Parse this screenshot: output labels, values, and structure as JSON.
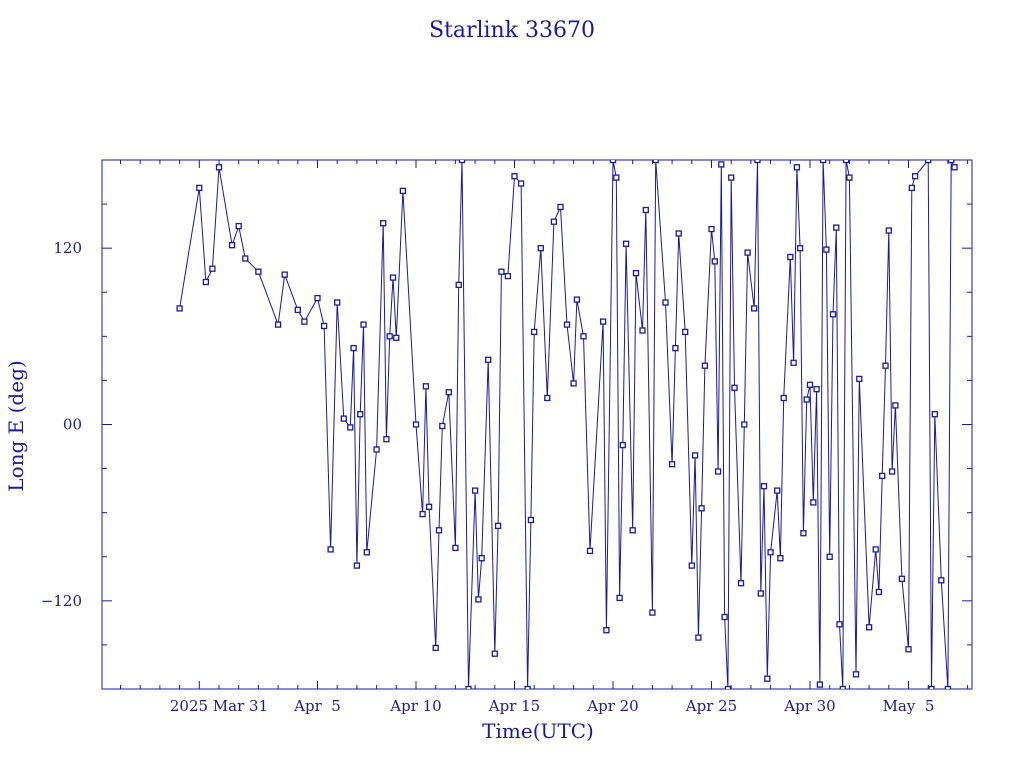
{
  "chart_data": {
    "type": "line",
    "title": "Starlink 33670",
    "xlabel": "Time(UTC)",
    "ylabel": "Long E (deg)",
    "ylim": [
      -180,
      180
    ],
    "x_tick_labels": [
      "2025 Mar 31",
      "Apr  5",
      "Apr 10",
      "Apr 15",
      "Apr 20",
      "Apr 25",
      "Apr 30",
      "May  5"
    ],
    "y_tick_labels": [
      "120",
      "00",
      "−120"
    ],
    "colors": {
      "line": "#1a1aa0",
      "frame": "#1a1aa0"
    },
    "marker": "square",
    "series": [
      {
        "points": [
          [
            "2025-03-29T00:00Z",
            79
          ],
          [
            "2025-03-30T00:00Z",
            161
          ],
          [
            "2025-03-30T08:00Z",
            97
          ],
          [
            "2025-03-30T16:00Z",
            106
          ],
          [
            "2025-03-31T00:00Z",
            175
          ],
          [
            "2025-03-31T16:00Z",
            122
          ],
          [
            "2025-04-01T00:00Z",
            135
          ],
          [
            "2025-04-01T08:00Z",
            113
          ],
          [
            "2025-04-02T00:00Z",
            104
          ],
          [
            "2025-04-03T00:00Z",
            68
          ],
          [
            "2025-04-03T08:00Z",
            102
          ],
          [
            "2025-04-04T00:00Z",
            78
          ],
          [
            "2025-04-04T08:00Z",
            70
          ],
          [
            "2025-04-05T00:00Z",
            86
          ],
          [
            "2025-04-05T08:00Z",
            67
          ],
          [
            "2025-04-05T16:00Z",
            -85
          ],
          [
            "2025-04-06T00:00Z",
            83
          ],
          [
            "2025-04-06T08:00Z",
            4
          ],
          [
            "2025-04-06T16:00Z",
            -2
          ],
          [
            "2025-04-06T20:00Z",
            52
          ],
          [
            "2025-04-07T00:00Z",
            -96
          ],
          [
            "2025-04-07T04:00Z",
            7
          ],
          [
            "2025-04-07T08:00Z",
            68
          ],
          [
            "2025-04-07T12:00Z",
            -87
          ],
          [
            "2025-04-08T00:00Z",
            -17
          ],
          [
            "2025-04-08T08:00Z",
            137
          ],
          [
            "2025-04-08T12:00Z",
            -10
          ],
          [
            "2025-04-08T16:00Z",
            60
          ],
          [
            "2025-04-08T20:00Z",
            100
          ],
          [
            "2025-04-09T00:00Z",
            59
          ],
          [
            "2025-04-09T08:00Z",
            159
          ],
          [
            "2025-04-10T00:00Z",
            0
          ],
          [
            "2025-04-10T08:00Z",
            -61
          ],
          [
            "2025-04-10T12:00Z",
            26
          ],
          [
            "2025-04-10T16:00Z",
            -56
          ],
          [
            "2025-04-11T00:00Z",
            -152
          ],
          [
            "2025-04-11T04:00Z",
            -72
          ],
          [
            "2025-04-11T08:00Z",
            -1
          ],
          [
            "2025-04-11T16:00Z",
            22
          ],
          [
            "2025-04-12T00:00Z",
            -84
          ],
          [
            "2025-04-12T04:00Z",
            95
          ],
          [
            "2025-04-12T08:00Z",
            180
          ],
          [
            "2025-04-12T16:00Z",
            -180
          ],
          [
            "2025-04-13T00:00Z",
            -45
          ],
          [
            "2025-04-13T04:00Z",
            -119
          ],
          [
            "2025-04-13T08:00Z",
            -91
          ],
          [
            "2025-04-13T16:00Z",
            44
          ],
          [
            "2025-04-14T00:00Z",
            -156
          ],
          [
            "2025-04-14T04:00Z",
            -69
          ],
          [
            "2025-04-14T08:00Z",
            104
          ],
          [
            "2025-04-14T16:00Z",
            101
          ],
          [
            "2025-04-15T00:00Z",
            169
          ],
          [
            "2025-04-15T08:00Z",
            164
          ],
          [
            "2025-04-15T16:00Z",
            -180
          ],
          [
            "2025-04-15T20:00Z",
            -65
          ],
          [
            "2025-04-16T00:00Z",
            63
          ],
          [
            "2025-04-16T08:00Z",
            120
          ],
          [
            "2025-04-16T16:00Z",
            18
          ],
          [
            "2025-04-17T00:00Z",
            138
          ],
          [
            "2025-04-17T08:00Z",
            148
          ],
          [
            "2025-04-17T16:00Z",
            68
          ],
          [
            "2025-04-18T00:00Z",
            28
          ],
          [
            "2025-04-18T04:00Z",
            85
          ],
          [
            "2025-04-18T12:00Z",
            60
          ],
          [
            "2025-04-18T20:00Z",
            -86
          ],
          [
            "2025-04-19T12:00Z",
            70
          ],
          [
            "2025-04-19T16:00Z",
            -140
          ],
          [
            "2025-04-20T00:00Z",
            180
          ],
          [
            "2025-04-20T04:00Z",
            168
          ],
          [
            "2025-04-20T08:00Z",
            -118
          ],
          [
            "2025-04-20T12:00Z",
            -14
          ],
          [
            "2025-04-20T16:00Z",
            123
          ],
          [
            "2025-04-21T00:00Z",
            -72
          ],
          [
            "2025-04-21T04:00Z",
            103
          ],
          [
            "2025-04-21T12:00Z",
            64
          ],
          [
            "2025-04-21T16:00Z",
            146
          ],
          [
            "2025-04-22T00:00Z",
            -128
          ],
          [
            "2025-04-22T04:00Z",
            180
          ],
          [
            "2025-04-22T16:00Z",
            83
          ],
          [
            "2025-04-23T00:00Z",
            -27
          ],
          [
            "2025-04-23T04:00Z",
            52
          ],
          [
            "2025-04-23T08:00Z",
            130
          ],
          [
            "2025-04-23T16:00Z",
            63
          ],
          [
            "2025-04-24T00:00Z",
            -96
          ],
          [
            "2025-04-24T04:00Z",
            -21
          ],
          [
            "2025-04-24T08:00Z",
            -145
          ],
          [
            "2025-04-24T12:00Z",
            -57
          ],
          [
            "2025-04-24T16:00Z",
            40
          ],
          [
            "2025-04-25T00:00Z",
            133
          ],
          [
            "2025-04-25T04:00Z",
            111
          ],
          [
            "2025-04-25T08:00Z",
            -32
          ],
          [
            "2025-04-25T12:00Z",
            177
          ],
          [
            "2025-04-25T16:00Z",
            -131
          ],
          [
            "2025-04-25T20:00Z",
            -180
          ],
          [
            "2025-04-26T00:00Z",
            168
          ],
          [
            "2025-04-26T04:00Z",
            25
          ],
          [
            "2025-04-26T12:00Z",
            -108
          ],
          [
            "2025-04-26T16:00Z",
            0
          ],
          [
            "2025-04-26T20:00Z",
            117
          ],
          [
            "2025-04-27T04:00Z",
            79
          ],
          [
            "2025-04-27T08:00Z",
            180
          ],
          [
            "2025-04-27T12:00Z",
            -115
          ],
          [
            "2025-04-27T16:00Z",
            -42
          ],
          [
            "2025-04-27T20:00Z",
            -173
          ],
          [
            "2025-04-28T00:00Z",
            -87
          ],
          [
            "2025-04-28T08:00Z",
            -45
          ],
          [
            "2025-04-28T12:00Z",
            -91
          ],
          [
            "2025-04-28T16:00Z",
            18
          ],
          [
            "2025-04-29T00:00Z",
            114
          ],
          [
            "2025-04-29T04:00Z",
            42
          ],
          [
            "2025-04-29T08:00Z",
            175
          ],
          [
            "2025-04-29T12:00Z",
            120
          ],
          [
            "2025-04-29T16:00Z",
            -74
          ],
          [
            "2025-04-29T20:00Z",
            17
          ],
          [
            "2025-04-30T00:00Z",
            27
          ],
          [
            "2025-04-30T04:00Z",
            -53
          ],
          [
            "2025-04-30T08:00Z",
            24
          ],
          [
            "2025-04-30T12:00Z",
            -177
          ],
          [
            "2025-04-30T16:00Z",
            180
          ],
          [
            "2025-04-30T20:00Z",
            119
          ],
          [
            "2025-05-01T00:00Z",
            -90
          ],
          [
            "2025-05-01T04:00Z",
            75
          ],
          [
            "2025-05-01T08:00Z",
            134
          ],
          [
            "2025-05-01T12:00Z",
            -136
          ],
          [
            "2025-05-01T16:00Z",
            -180
          ],
          [
            "2025-05-01T20:00Z",
            180
          ],
          [
            "2025-05-02T00:00Z",
            168
          ],
          [
            "2025-05-02T08:00Z",
            -170
          ],
          [
            "2025-05-02T12:00Z",
            31
          ],
          [
            "2025-05-03T00:00Z",
            -138
          ],
          [
            "2025-05-03T08:00Z",
            -85
          ],
          [
            "2025-05-03T12:00Z",
            -114
          ],
          [
            "2025-05-03T16:00Z",
            -35
          ],
          [
            "2025-05-03T20:00Z",
            40
          ],
          [
            "2025-05-04T00:00Z",
            132
          ],
          [
            "2025-05-04T04:00Z",
            -32
          ],
          [
            "2025-05-04T08:00Z",
            13
          ],
          [
            "2025-05-04T16:00Z",
            -105
          ],
          [
            "2025-05-05T00:00Z",
            -153
          ],
          [
            "2025-05-05T04:00Z",
            161
          ],
          [
            "2025-05-05T08:00Z",
            169
          ],
          [
            "2025-05-06T00:00Z",
            180
          ],
          [
            "2025-05-06T04:00Z",
            -180
          ],
          [
            "2025-05-06T08:00Z",
            7
          ],
          [
            "2025-05-06T16:00Z",
            -106
          ],
          [
            "2025-05-07T00:00Z",
            -180
          ],
          [
            "2025-05-07T04:00Z",
            180
          ],
          [
            "2025-05-07T08:00Z",
            175
          ]
        ]
      }
    ]
  }
}
